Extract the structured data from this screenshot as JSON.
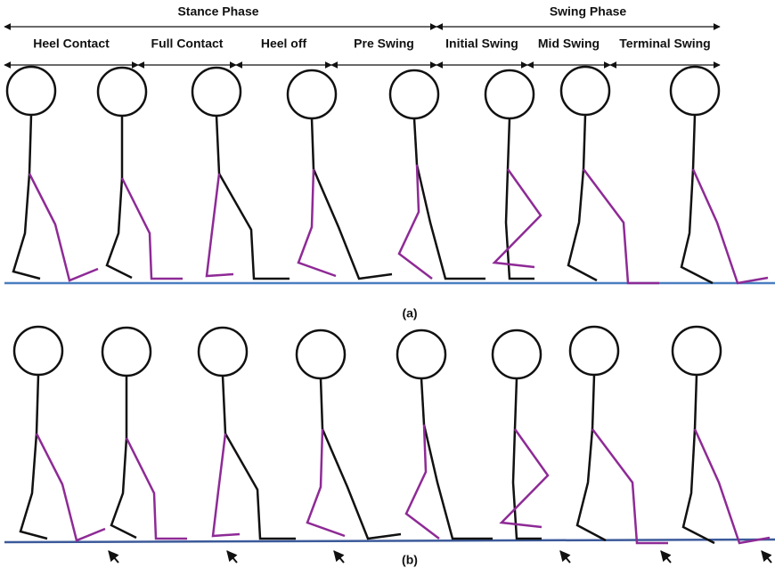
{
  "header": {
    "stance": "Stance Phase",
    "swing": "Swing Phase"
  },
  "phases": [
    "Heel Contact",
    "Full Contact",
    "Heel off",
    "Pre Swing",
    "Initial Swing",
    "Mid Swing",
    "Terminal Swing"
  ],
  "captions": {
    "a": "(a)",
    "b": "(b)"
  }
}
